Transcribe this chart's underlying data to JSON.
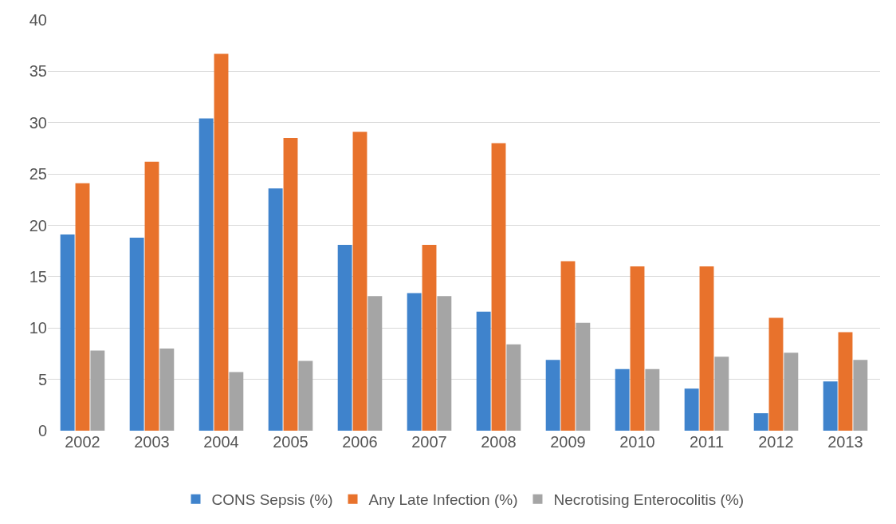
{
  "chart_data": {
    "type": "bar",
    "categories": [
      "2002",
      "2003",
      "2004",
      "2005",
      "2006",
      "2007",
      "2008",
      "2009",
      "2010",
      "2011",
      "2012",
      "2013"
    ],
    "series": [
      {
        "name": "CONS Sepsis (%)",
        "color": "#3f83cc",
        "values": [
          19.1,
          18.8,
          30.4,
          23.6,
          18.1,
          13.4,
          11.6,
          6.9,
          6.0,
          4.1,
          1.7,
          4.8
        ]
      },
      {
        "name": "Any Late Infection (%)",
        "color": "#e8722c",
        "values": [
          24.1,
          26.2,
          36.7,
          28.5,
          29.1,
          18.1,
          28.0,
          16.5,
          16.0,
          16.0,
          11.0,
          9.6
        ]
      },
      {
        "name": "Necrotising Enterocolitis (%)",
        "color": "#a5a5a5",
        "values": [
          7.8,
          8.0,
          5.7,
          6.8,
          13.1,
          13.1,
          8.4,
          10.5,
          6.0,
          7.2,
          7.6,
          6.9
        ]
      }
    ],
    "ylim": [
      0,
      40
    ],
    "yticks": [
      0,
      5,
      10,
      15,
      20,
      25,
      30,
      35,
      40
    ],
    "grid": "y",
    "legend": "bottom"
  }
}
